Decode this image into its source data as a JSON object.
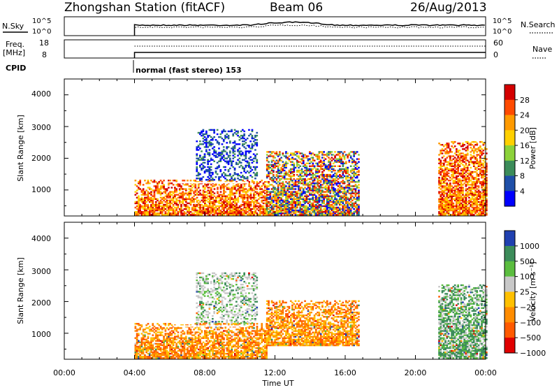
{
  "header": {
    "station": "Zhongshan Station (fitACF)",
    "beam": "Beam 06",
    "date": "26/Aug/2013"
  },
  "status_panels": {
    "nsky_label": "N.Sky",
    "nsky_ticks": [
      "10^5",
      "10^0"
    ],
    "nsearch_label": "N.Search",
    "nsearch_ticks": [
      "10^5",
      "10^0"
    ],
    "freq_label_1": "Freq.",
    "freq_label_2": "[MHz]",
    "freq_ticks": [
      "18",
      "8"
    ],
    "nave_label": "Nave",
    "nave_ticks": [
      "60",
      "0"
    ],
    "cpid_label": "CPID",
    "cpid_text": "normal (fast stereo) 153"
  },
  "chart_data": [
    {
      "type": "heatmap",
      "name": "power",
      "ylabel": "Slant Range [km]",
      "yticks": [
        "4000",
        "3000",
        "2000",
        "1000"
      ],
      "ylim": [
        180,
        4500
      ],
      "xlim_hours": [
        0,
        24
      ],
      "colorbar_label": "Power [dB]",
      "colorbar_ticks": [
        "28",
        "24",
        "20",
        "16",
        "12",
        "8",
        "4"
      ],
      "colorbar_colors": [
        "#d40000",
        "#ff4a00",
        "#ff9a00",
        "#ffd000",
        "#8cd23a",
        "#3c8c5a",
        "#1f4fa8",
        "#0000ff"
      ],
      "regions": [
        {
          "t0": 4.0,
          "t1": 11.5,
          "r0": 200,
          "r1": 1300,
          "dominant": "warm"
        },
        {
          "t0": 7.5,
          "t1": 11.0,
          "r0": 1300,
          "r1": 2900,
          "dominant": "cool"
        },
        {
          "t0": 11.5,
          "t1": 16.8,
          "r0": 200,
          "r1": 2200,
          "dominant": "mixed"
        },
        {
          "t0": 21.3,
          "t1": 24.0,
          "r0": 200,
          "r1": 2500,
          "dominant": "warm"
        }
      ]
    },
    {
      "type": "heatmap",
      "name": "velocity",
      "ylabel": "Slant Range [km]",
      "yticks": [
        "4000",
        "3000",
        "2000",
        "1000"
      ],
      "ylim": [
        180,
        4500
      ],
      "xlim_hours": [
        0,
        24
      ],
      "colorbar_label": "Velocity [m s⁻¹]",
      "colorbar_ticks": [
        "1000",
        "500",
        "100",
        "25",
        "−25",
        "−100",
        "−500",
        "−1000"
      ],
      "colorbar_colors": [
        "#2040b0",
        "#3c8c5a",
        "#5bbd3f",
        "#c8c8c8",
        "#ffc000",
        "#ff8c00",
        "#ff5a00",
        "#e00000"
      ],
      "regions": [
        {
          "t0": 4.0,
          "t1": 11.5,
          "r0": 200,
          "r1": 1300,
          "dominant": "negative"
        },
        {
          "t0": 7.5,
          "t1": 11.0,
          "r0": 1300,
          "r1": 2900,
          "dominant": "neutral"
        },
        {
          "t0": 11.5,
          "t1": 16.8,
          "r0": 600,
          "r1": 2000,
          "dominant": "negative"
        },
        {
          "t0": 21.3,
          "t1": 24.0,
          "r0": 200,
          "r1": 2500,
          "dominant": "positive"
        }
      ]
    }
  ],
  "xaxis": {
    "ticks": [
      "00:00",
      "04:00",
      "08:00",
      "12:00",
      "16:00",
      "20:00",
      "00:00"
    ],
    "label": "Time UT"
  }
}
